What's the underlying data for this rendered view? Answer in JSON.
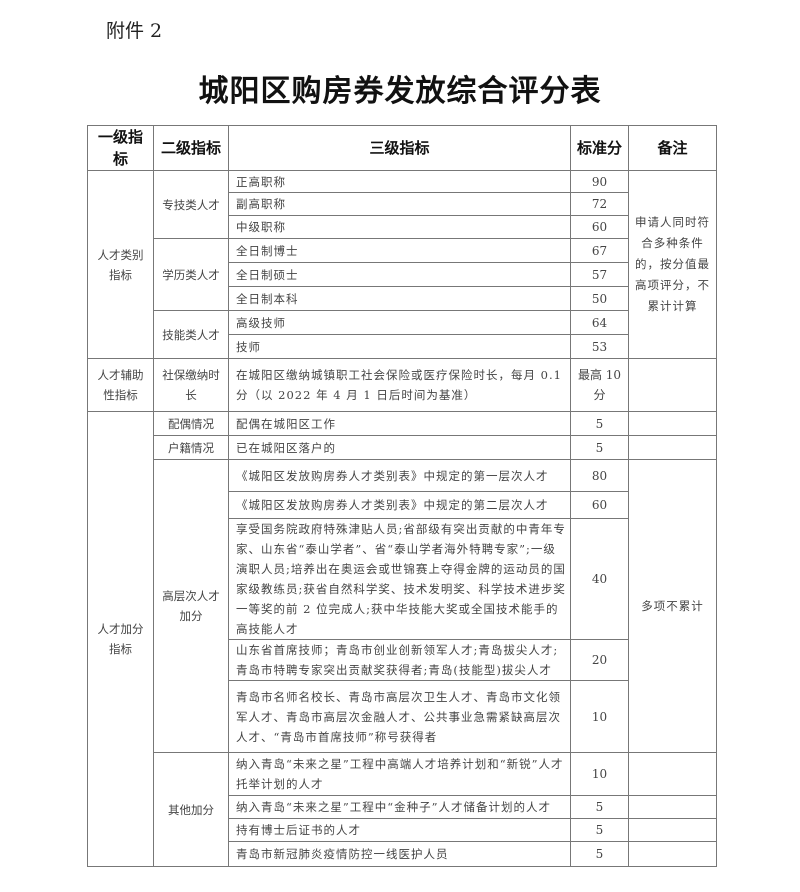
{
  "attachment": "附件 2",
  "title": "城阳区购房券发放综合评分表",
  "headers": {
    "l1": "一级指标",
    "l2": "二级指标",
    "l3": "三级指标",
    "score": "标准分",
    "remark": "备注"
  },
  "talent_category": {
    "l1": "人才类别指标",
    "remark": "申请人同时符合多种条件的，按分值最高项评分，不累计计算",
    "groups": [
      {
        "name": "专技类人才",
        "items": [
          {
            "text": "正高职称",
            "score": "90"
          },
          {
            "text": "副高职称",
            "score": "72"
          },
          {
            "text": "中级职称",
            "score": "60"
          }
        ]
      },
      {
        "name": "学历类人才",
        "items": [
          {
            "text": "全日制博士",
            "score": "67"
          },
          {
            "text": "全日制硕士",
            "score": "57"
          },
          {
            "text": "全日制本科",
            "score": "50"
          }
        ]
      },
      {
        "name": "技能类人才",
        "items": [
          {
            "text": "高级技师",
            "score": "64"
          },
          {
            "text": "技师",
            "score": "53"
          }
        ]
      }
    ]
  },
  "auxiliary": {
    "l1": "人才辅助性指标",
    "l2": "社保缴纳时长",
    "text": "在城阳区缴纳城镇职工社会保险或医疗保险时长，每月 0.1 分（以 2022 年 4 月 1 日后时间为基准）",
    "score": "最高 10 分"
  },
  "bonus": {
    "l1": "人才加分指标",
    "spouse": {
      "name": "配偶情况",
      "text": "配偶在城阳区工作",
      "score": "5"
    },
    "hukou": {
      "name": "户籍情况",
      "text": "已在城阳区落户的",
      "score": "5"
    },
    "high_level": {
      "name": "高层次人才加分",
      "remark": "多项不累计",
      "items": [
        {
          "text": "《城阳区发放购房券人才类别表》中规定的第一层次人才",
          "score": "80"
        },
        {
          "text": "《城阳区发放购房券人才类别表》中规定的第二层次人才",
          "score": "60"
        },
        {
          "text": "享受国务院政府特殊津贴人员;省部级有突出贡献的中青年专家、山东省“泰山学者”、省“泰山学者海外特聘专家”;一级演职人员;培养出在奥运会或世锦赛上夺得金牌的运动员的国家级教练员;获省自然科学奖、技术发明奖、科学技术进步奖一等奖的前 2 位完成人;获中华技能大奖或全国技术能手的高技能人才",
          "score": "40"
        },
        {
          "text": "山东省首席技师；青岛市创业创新领军人才;青岛拔尖人才;青岛市特聘专家突出贡献奖获得者;青岛(技能型)拔尖人才",
          "score": "20"
        },
        {
          "text": "青岛市名师名校长、青岛市高层次卫生人才、青岛市文化领军人才、青岛市高层次金融人才、公共事业急需紧缺高层次人才、“青岛市首席技师”称号获得者",
          "score": "10"
        }
      ]
    },
    "other": {
      "name": "其他加分",
      "items": [
        {
          "text": "纳入青岛“未来之星”工程中高端人才培养计划和“新锐”人才托举计划的人才",
          "score": "10"
        },
        {
          "text": "纳入青岛“未来之星”工程中“金种子”人才储备计划的人才",
          "score": "5"
        },
        {
          "text": "持有博士后证书的人才",
          "score": "5"
        },
        {
          "text": "青岛市新冠肺炎疫情防控一线医护人员",
          "score": "5"
        }
      ]
    }
  }
}
